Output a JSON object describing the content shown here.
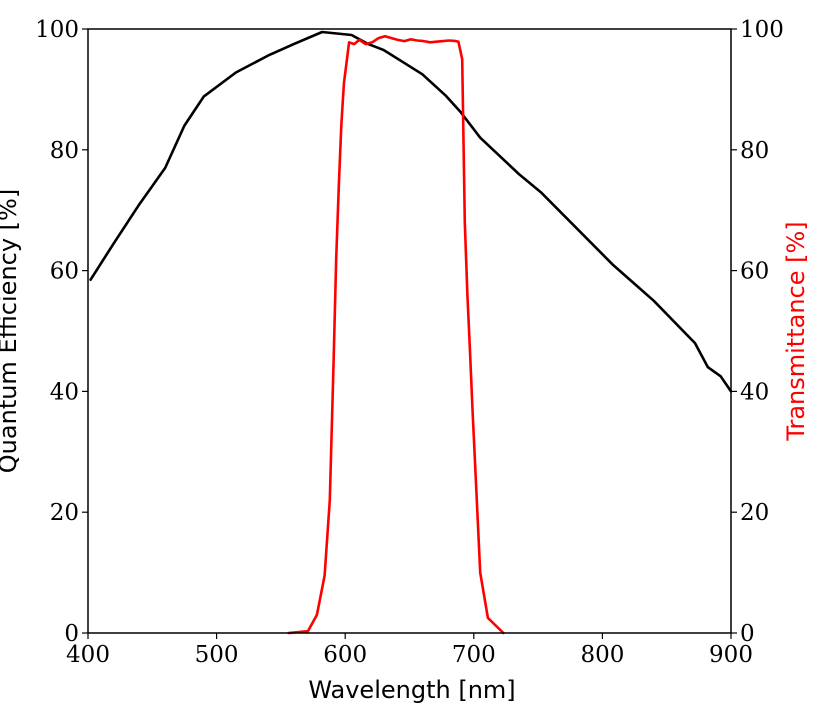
{
  "chart_data": {
    "type": "line",
    "title": "",
    "xlabel": "Wavelength [nm]",
    "ylabel_left": "Quantum Efficiency [%]",
    "ylabel_right": "Transmittance [%]",
    "xlim": [
      400,
      900
    ],
    "ylim_left": [
      0,
      100
    ],
    "ylim_right": [
      0,
      100
    ],
    "x_ticks": [
      "400",
      "500",
      "600",
      "700",
      "800",
      "900"
    ],
    "y_ticks_left": [
      "0",
      "20",
      "40",
      "60",
      "80",
      "100"
    ],
    "y_ticks_right": [
      "0",
      "20",
      "40",
      "60",
      "80",
      "100"
    ],
    "grid": false,
    "series": [
      {
        "name": "Quantum Efficiency",
        "axis": "left",
        "color": "#000000",
        "x": [
          402,
          420,
          440,
          460,
          475,
          490,
          515,
          540,
          560,
          582,
          605,
          618,
          630,
          645,
          660,
          678,
          690,
          705,
          720,
          735,
          752,
          780,
          808,
          840,
          872,
          882,
          892,
          900
        ],
        "y": [
          58.5,
          64.5,
          71.0,
          77.0,
          84.0,
          88.8,
          92.8,
          95.6,
          97.5,
          99.5,
          99.0,
          97.5,
          96.5,
          94.5,
          92.5,
          89.0,
          86.2,
          82.0,
          79.0,
          76.0,
          73.0,
          67.0,
          61.0,
          55.0,
          48.0,
          44.0,
          42.5,
          40.0
        ]
      },
      {
        "name": "Transmittance",
        "axis": "right",
        "color": "#ff0000",
        "x": [
          556,
          571,
          578,
          584,
          588,
          591,
          593,
          595,
          597,
          599,
          603,
          607,
          611,
          616,
          621,
          626,
          631,
          636,
          641,
          646,
          651,
          656,
          661,
          666,
          671,
          676,
          681,
          686,
          688,
          691,
          693,
          695,
          697,
          699,
          701,
          705,
          711,
          723
        ],
        "y": [
          0,
          0.3,
          3.0,
          9.5,
          22.0,
          45.0,
          62.0,
          74.0,
          84.0,
          91.0,
          97.8,
          97.5,
          98.2,
          97.5,
          97.8,
          98.5,
          98.8,
          98.5,
          98.2,
          98.0,
          98.3,
          98.1,
          98.0,
          97.8,
          97.9,
          98.0,
          98.1,
          98.0,
          97.9,
          95.0,
          68.0,
          56.0,
          47.0,
          37.0,
          28.0,
          10.0,
          2.5,
          0
        ]
      }
    ]
  }
}
